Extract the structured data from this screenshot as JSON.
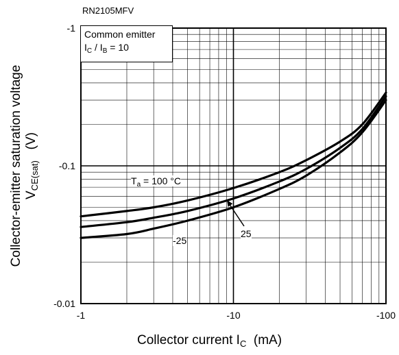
{
  "part_number": "RN2105MFV",
  "legend": {
    "line1": "Common emitter",
    "line2_I": "I",
    "line2_sub1": "C",
    "line2_mid": " / I",
    "line2_sub2": "B",
    "line2_end": " = 10"
  },
  "ylabel": {
    "line1": "Collector-emitter saturation voltage",
    "line2_V": "V",
    "line2_sub": "CE(sat)",
    "line2_unit": "(V)"
  },
  "xlabel": {
    "main": "Collector current  I",
    "sub": "C",
    "unit": "(mA)"
  },
  "colors": {
    "axis": "#000000",
    "grid": "#000000",
    "curve": "#000000",
    "background": "#ffffff"
  },
  "chart_data": {
    "type": "line",
    "xscale": "log",
    "yscale": "log",
    "xlim": [
      -1,
      -100
    ],
    "ylim": [
      -0.01,
      -1
    ],
    "x_ticks": [
      "-1",
      "-10",
      "-100"
    ],
    "y_ticks": [
      "-1",
      "-0.1",
      "-0.01"
    ],
    "grid": true,
    "series": [
      {
        "name": "Ta = 100 °C",
        "x": [
          -1,
          -2,
          -3,
          -5,
          -10,
          -20,
          -30,
          -50,
          -70,
          -100
        ],
        "y": [
          -0.043,
          -0.047,
          -0.05,
          -0.056,
          -0.069,
          -0.09,
          -0.11,
          -0.15,
          -0.2,
          -0.34
        ]
      },
      {
        "name": "25",
        "x": [
          -1,
          -2,
          -3,
          -5,
          -10,
          -20,
          -30,
          -50,
          -70,
          -100
        ],
        "y": [
          -0.036,
          -0.039,
          -0.042,
          -0.047,
          -0.058,
          -0.077,
          -0.095,
          -0.135,
          -0.185,
          -0.32
        ]
      },
      {
        "name": "-25",
        "x": [
          -1,
          -2,
          -3,
          -5,
          -10,
          -20,
          -30,
          -50,
          -70,
          -100
        ],
        "y": [
          -0.03,
          -0.032,
          -0.035,
          -0.04,
          -0.05,
          -0.068,
          -0.085,
          -0.125,
          -0.175,
          -0.3
        ]
      }
    ],
    "annotations": {
      "ta_T": "T",
      "ta_sub": "a",
      "ta_rest": " = 100 °C",
      "label_25": "25",
      "label_m25": "-25"
    }
  }
}
